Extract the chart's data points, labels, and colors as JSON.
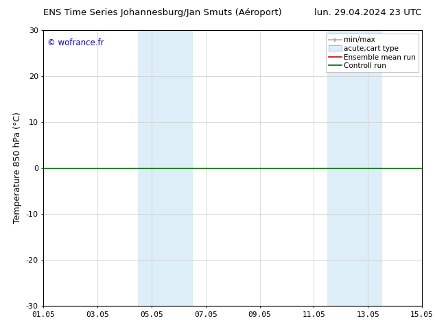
{
  "title_left": "ENS Time Series Johannesburg/Jan Smuts (Aéroport)",
  "title_right": "lun. 29.04.2024 23 UTC",
  "ylabel": "Temperature 850 hPa (°C)",
  "copyright_text": "© wofrance.fr",
  "copyright_color": "#0000cc",
  "ylim": [
    -30,
    30
  ],
  "yticks": [
    -30,
    -20,
    -10,
    0,
    10,
    20,
    30
  ],
  "xlim_start": 0,
  "xlim_end": 14,
  "xtick_labels": [
    "01.05",
    "03.05",
    "05.05",
    "07.05",
    "09.05",
    "11.05",
    "13.05",
    "15.05"
  ],
  "xtick_positions": [
    0,
    2,
    4,
    6,
    8,
    10,
    12,
    14
  ],
  "shaded_bands": [
    {
      "x_start": 3.5,
      "x_end": 5.5
    },
    {
      "x_start": 10.5,
      "x_end": 12.5
    }
  ],
  "shaded_color": "#ddeef8",
  "zero_line_color": "#006600",
  "zero_line_y": 0,
  "legend_labels": [
    "min/max",
    "acute;cart type",
    "Ensemble mean run",
    "Controll run"
  ],
  "bg_color": "#ffffff",
  "axes_bg_color": "#ffffff",
  "grid_color": "#cccccc",
  "title_fontsize": 9.5,
  "axis_label_fontsize": 9,
  "tick_fontsize": 8,
  "legend_fontsize": 7.5
}
